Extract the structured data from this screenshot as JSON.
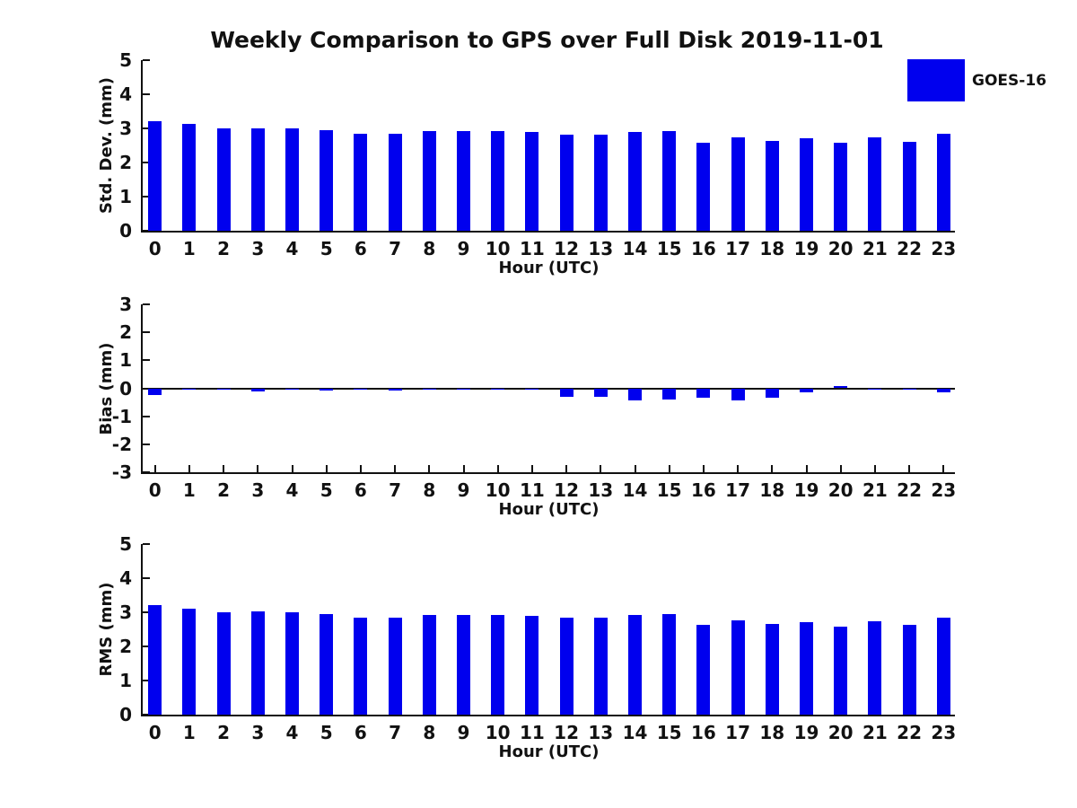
{
  "title": "Weekly Comparison to GPS over Full Disk 2019-11-01",
  "legend": {
    "label": "GOES-16",
    "color": "#0000EE"
  },
  "chart_data": [
    {
      "type": "bar",
      "title": "",
      "xlabel": "Hour (UTC)",
      "ylabel": "Std. Dev. (mm)",
      "ylim": [
        0,
        5
      ],
      "yticks": [
        0,
        1,
        2,
        3,
        4,
        5
      ],
      "grid": false,
      "legend_position": "upper right outside",
      "zero_line": false,
      "color": "#0000EE",
      "categories": [
        "0",
        "1",
        "2",
        "3",
        "4",
        "5",
        "6",
        "7",
        "8",
        "9",
        "10",
        "11",
        "12",
        "13",
        "14",
        "15",
        "16",
        "17",
        "18",
        "19",
        "20",
        "21",
        "22",
        "23"
      ],
      "series": [
        {
          "name": "GOES-16",
          "values": [
            3.22,
            3.12,
            2.99,
            3.01,
            3.01,
            2.96,
            2.85,
            2.85,
            2.92,
            2.92,
            2.92,
            2.9,
            2.82,
            2.82,
            2.9,
            2.93,
            2.59,
            2.75,
            2.64,
            2.71,
            2.57,
            2.74,
            2.6,
            2.83
          ]
        }
      ]
    },
    {
      "type": "bar",
      "title": "",
      "xlabel": "Hour (UTC)",
      "ylabel": "Bias (mm)",
      "ylim": [
        -3,
        3
      ],
      "yticks": [
        -3,
        -2,
        -1,
        0,
        1,
        2,
        3
      ],
      "grid": false,
      "zero_line": true,
      "color": "#0000EE",
      "categories": [
        "0",
        "1",
        "2",
        "3",
        "4",
        "5",
        "6",
        "7",
        "8",
        "9",
        "10",
        "11",
        "12",
        "13",
        "14",
        "15",
        "16",
        "17",
        "18",
        "19",
        "20",
        "21",
        "22",
        "23"
      ],
      "series": [
        {
          "name": "GOES-16",
          "values": [
            -0.25,
            -0.05,
            -0.05,
            -0.1,
            -0.02,
            -0.07,
            -0.05,
            -0.08,
            -0.05,
            -0.06,
            -0.03,
            -0.05,
            -0.32,
            -0.32,
            -0.44,
            -0.39,
            -0.35,
            -0.42,
            -0.35,
            -0.15,
            0.08,
            -0.02,
            -0.06,
            -0.16
          ]
        }
      ]
    },
    {
      "type": "bar",
      "title": "",
      "xlabel": "Hour (UTC)",
      "ylabel": "RMS (mm)",
      "ylim": [
        0,
        5
      ],
      "yticks": [
        0,
        1,
        2,
        3,
        4,
        5
      ],
      "grid": false,
      "zero_line": false,
      "color": "#0000EE",
      "categories": [
        "0",
        "1",
        "2",
        "3",
        "4",
        "5",
        "6",
        "7",
        "8",
        "9",
        "10",
        "11",
        "12",
        "13",
        "14",
        "15",
        "16",
        "17",
        "18",
        "19",
        "20",
        "21",
        "22",
        "23"
      ],
      "series": [
        {
          "name": "GOES-16",
          "values": [
            3.2,
            3.1,
            2.99,
            3.02,
            2.99,
            2.94,
            2.84,
            2.84,
            2.93,
            2.93,
            2.91,
            2.9,
            2.83,
            2.83,
            2.93,
            2.96,
            2.64,
            2.76,
            2.65,
            2.71,
            2.58,
            2.75,
            2.62,
            2.85
          ]
        }
      ]
    }
  ]
}
